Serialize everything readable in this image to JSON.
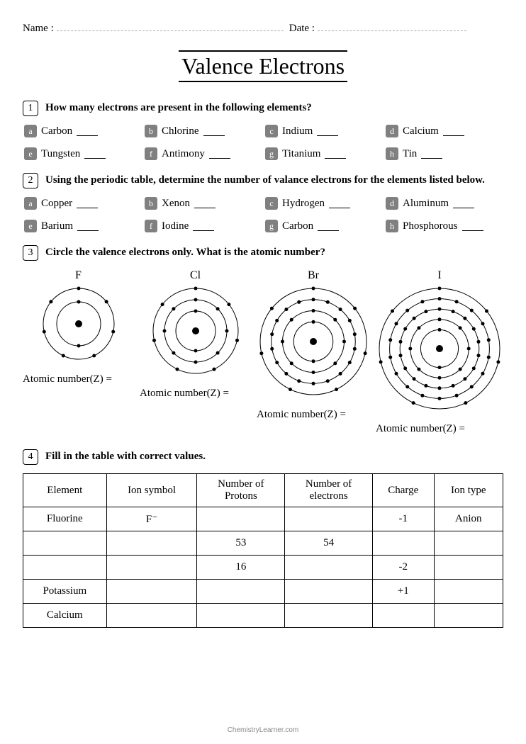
{
  "header": {
    "name_label": "Name :",
    "date_label": "Date :"
  },
  "title": "Valence Electrons",
  "questions": [
    {
      "num": "1",
      "text": "How many electrons are present in the following elements?",
      "items": [
        {
          "l": "a",
          "t": "Carbon"
        },
        {
          "l": "b",
          "t": "Chlorine"
        },
        {
          "l": "c",
          "t": "Indium"
        },
        {
          "l": "d",
          "t": "Calcium"
        },
        {
          "l": "e",
          "t": "Tungsten"
        },
        {
          "l": "f",
          "t": "Antimony"
        },
        {
          "l": "g",
          "t": "Titanium"
        },
        {
          "l": "h",
          "t": "Tin"
        }
      ]
    },
    {
      "num": "2",
      "text": "Using the periodic table, determine the number of valance electrons for the elements listed below.",
      "items": [
        {
          "l": "a",
          "t": "Copper"
        },
        {
          "l": "b",
          "t": "Xenon"
        },
        {
          "l": "c",
          "t": "Hydrogen"
        },
        {
          "l": "d",
          "t": "Aluminum"
        },
        {
          "l": "e",
          "t": "Barium"
        },
        {
          "l": "f",
          "t": "Iodine"
        },
        {
          "l": "g",
          "t": "Carbon"
        },
        {
          "l": "h",
          "t": "Phosphorous"
        }
      ]
    },
    {
      "num": "3",
      "text": "Circle the valence electrons only. What is the atomic number?"
    },
    {
      "num": "4",
      "text": "Fill in the table with correct values."
    }
  ],
  "atoms": [
    {
      "symbol": "F",
      "size": 110,
      "shells": [
        2,
        7
      ],
      "answer_label": "Atomic number(Z) ="
    },
    {
      "symbol": "Cl",
      "size": 130,
      "shells": [
        2,
        8,
        7
      ],
      "answer_label": "Atomic number(Z) ="
    },
    {
      "symbol": "Br",
      "size": 160,
      "shells": [
        2,
        8,
        18,
        7
      ],
      "answer_label": "Atomic number(Z) ="
    },
    {
      "symbol": "I",
      "size": 180,
      "shells": [
        2,
        8,
        18,
        18,
        7
      ],
      "answer_label": "Atomic number(Z) ="
    }
  ],
  "table": {
    "headers": [
      "Element",
      "Ion symbol",
      "Number of Protons",
      "Number of electrons",
      "Charge",
      "Ion type"
    ],
    "rows": [
      [
        "Fluorine",
        "F⁻",
        "",
        "",
        "-1",
        "Anion"
      ],
      [
        "",
        "",
        "53",
        "54",
        "",
        ""
      ],
      [
        "",
        "",
        "16",
        "",
        "-2",
        ""
      ],
      [
        "Potassium",
        "",
        "",
        "",
        "+1",
        ""
      ],
      [
        "Calcium",
        "",
        "",
        "",
        "",
        ""
      ]
    ]
  },
  "footer": "ChemistryLearner.com",
  "colors": {
    "bg": "#ffffff",
    "text": "#000000",
    "subletter_bg": "#808080",
    "dash": "#aaaaaa",
    "footer": "#888888"
  }
}
